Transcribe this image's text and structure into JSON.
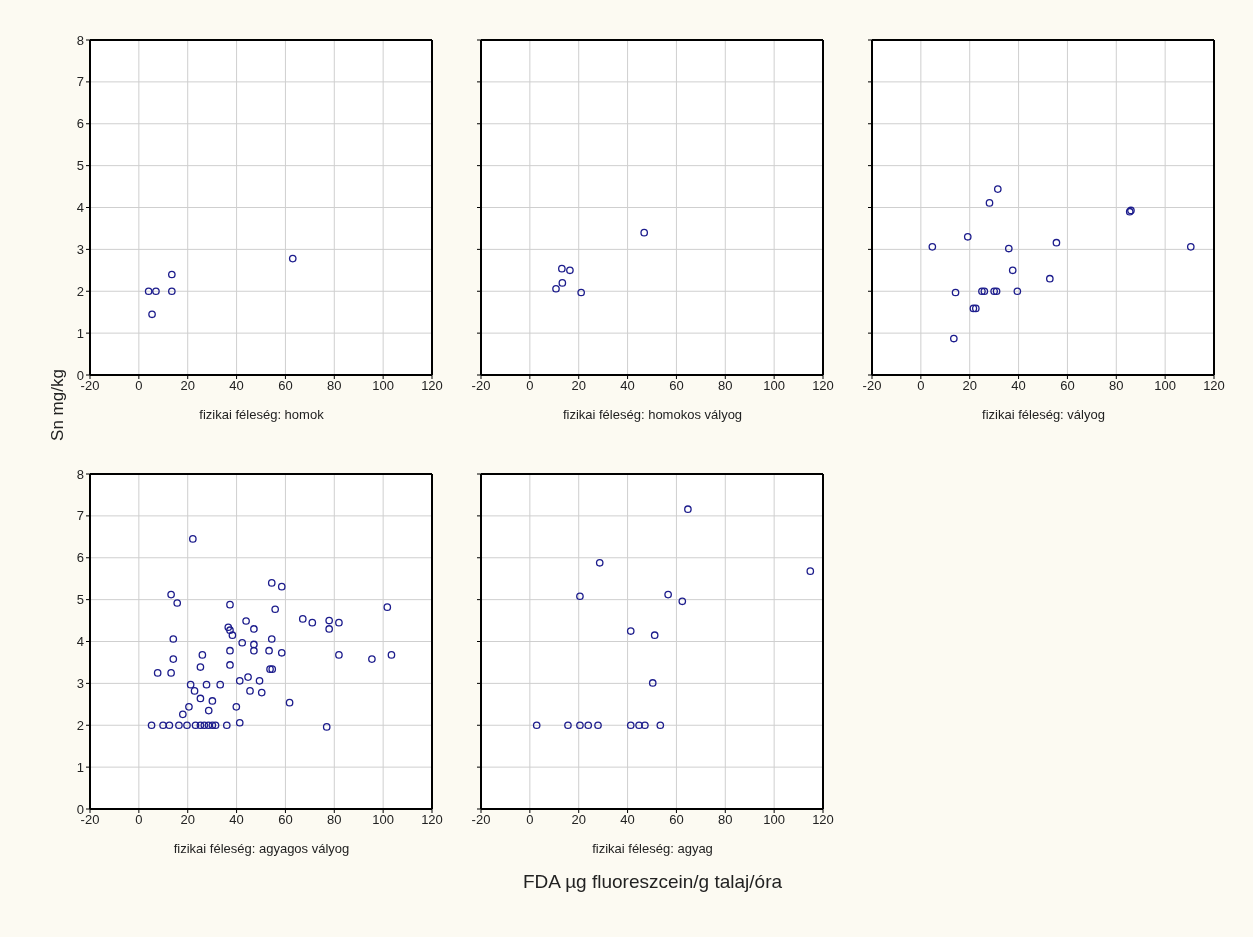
{
  "chart_data": [
    {
      "type": "scatter",
      "xlabel": "fizikai féleség: homok",
      "ylabel": "Sn mg/kg",
      "color": "#1c1c8c",
      "marker": "circle",
      "grid": true,
      "xlim": [
        -20,
        120
      ],
      "xticks": [
        -20,
        0,
        20,
        40,
        60,
        80,
        100,
        120
      ],
      "ylim": [
        0,
        8
      ],
      "yticks": [
        0,
        1,
        2,
        3,
        4,
        5,
        6,
        7,
        8
      ],
      "x": [
        4,
        7,
        5.4,
        13.5,
        13.5,
        63
      ],
      "values": [
        2,
        2,
        1.45,
        2.4,
        2,
        2.78
      ]
    },
    {
      "type": "scatter",
      "xlabel": "fizikai féleség: homokos vályog",
      "color": "#1c1c8c",
      "marker": "circle",
      "grid": true,
      "tick_labels": "x",
      "xlim": [
        -20,
        120
      ],
      "xticks": [
        -20,
        0,
        20,
        40,
        60,
        80,
        100,
        120
      ],
      "ylim": [
        0,
        8
      ],
      "yticks": [
        0,
        1,
        2,
        3,
        4,
        5,
        6,
        7,
        8
      ],
      "x": [
        10.7,
        13.3,
        13.1,
        16.4,
        21,
        46.8
      ],
      "values": [
        2.06,
        2.2,
        2.54,
        2.5,
        1.97,
        3.4
      ]
    },
    {
      "type": "scatter",
      "xlabel": "fizikai féleség: vályog",
      "color": "#1c1c8c",
      "marker": "circle",
      "grid": true,
      "tick_labels": "x",
      "xlim": [
        -20,
        120
      ],
      "xticks": [
        -20,
        0,
        20,
        40,
        60,
        80,
        100,
        120
      ],
      "ylim": [
        0,
        8
      ],
      "yticks": [
        0,
        1,
        2,
        3,
        4,
        5,
        6,
        7,
        8
      ],
      "x": [
        4.7,
        19.2,
        28.1,
        31.5,
        14.2,
        13.5,
        21.5,
        22.5,
        25,
        26,
        30,
        31,
        39.5,
        36,
        37.6,
        52.8,
        55.5,
        85.5,
        86,
        110.5
      ],
      "values": [
        3.06,
        3.3,
        4.11,
        4.44,
        1.97,
        0.87,
        1.59,
        1.59,
        2,
        2,
        2,
        2,
        2,
        3.02,
        2.5,
        2.3,
        3.16,
        3.9,
        3.93,
        3.06
      ]
    },
    {
      "type": "scatter",
      "xlabel": "fizikai féleség: agyagos vályog",
      "color": "#1c1c8c",
      "marker": "circle",
      "grid": true,
      "xlim": [
        -20,
        120
      ],
      "xticks": [
        -20,
        0,
        20,
        40,
        60,
        80,
        100,
        120
      ],
      "ylim": [
        0,
        8
      ],
      "yticks": [
        0,
        1,
        2,
        3,
        4,
        5,
        6,
        7,
        8
      ],
      "x": [
        22.1,
        13.2,
        15.7,
        14.1,
        14.1,
        7.7,
        13.2,
        37.3,
        36.6,
        37.3,
        38.3,
        37.3,
        37.3,
        43.9,
        47.1,
        42.3,
        47.1,
        47.1,
        54.4,
        58.5,
        55.8,
        54.4,
        53.3,
        58.5,
        53.7,
        54.6,
        67.1,
        71,
        77.9,
        77.9,
        81.9,
        81.9,
        101.7,
        103.4,
        95.4,
        61.7,
        76.9,
        26,
        25.2,
        21.2,
        22.8,
        25.2,
        27.7,
        33.3,
        30.1,
        28.6,
        20.5,
        18,
        41.3,
        44.7,
        45.5,
        49.4,
        50.3,
        39.9,
        41.3,
        5.2,
        9.9,
        12.5,
        16.4,
        19.7,
        23.2,
        25.2,
        26.8,
        28.5,
        30.1,
        31.4,
        36
      ],
      "values": [
        6.45,
        5.12,
        4.92,
        4.06,
        3.58,
        3.25,
        3.25,
        4.88,
        4.34,
        4.27,
        4.15,
        3.78,
        3.44,
        4.49,
        4.3,
        3.97,
        3.93,
        3.78,
        5.4,
        5.31,
        4.77,
        4.06,
        3.78,
        3.73,
        3.34,
        3.34,
        4.54,
        4.45,
        4.5,
        4.3,
        4.45,
        3.68,
        4.82,
        3.68,
        3.58,
        2.54,
        1.96,
        3.68,
        3.39,
        2.97,
        2.82,
        2.64,
        2.97,
        2.97,
        2.58,
        2.35,
        2.44,
        2.26,
        3.06,
        3.15,
        2.82,
        3.06,
        2.78,
        2.44,
        2.06,
        2,
        2,
        2,
        2,
        2,
        2,
        2,
        2,
        2,
        2,
        2,
        2
      ]
    },
    {
      "type": "scatter",
      "xlabel": "fizikai féleség: agyag",
      "annotations": [
        "FDA µg fluoreszcein/g talaj/óra"
      ],
      "color": "#1c1c8c",
      "marker": "circle",
      "grid": true,
      "tick_labels": "x",
      "xlim": [
        -20,
        120
      ],
      "xticks": [
        -20,
        0,
        20,
        40,
        60,
        80,
        100,
        120
      ],
      "ylim": [
        0,
        8
      ],
      "yticks": [
        0,
        1,
        2,
        3,
        4,
        5,
        6,
        7,
        8
      ],
      "x": [
        64.7,
        28.6,
        114.8,
        20.5,
        56.6,
        62.4,
        41.3,
        51.1,
        50.3,
        2.8,
        15.6,
        20.5,
        23.9,
        27.9,
        41.3,
        44.7,
        47.1,
        53.4
      ],
      "values": [
        7.16,
        5.88,
        5.68,
        5.08,
        5.12,
        4.96,
        4.25,
        4.15,
        3.01,
        2,
        2,
        2,
        2,
        2,
        2,
        2,
        2,
        2
      ]
    }
  ]
}
